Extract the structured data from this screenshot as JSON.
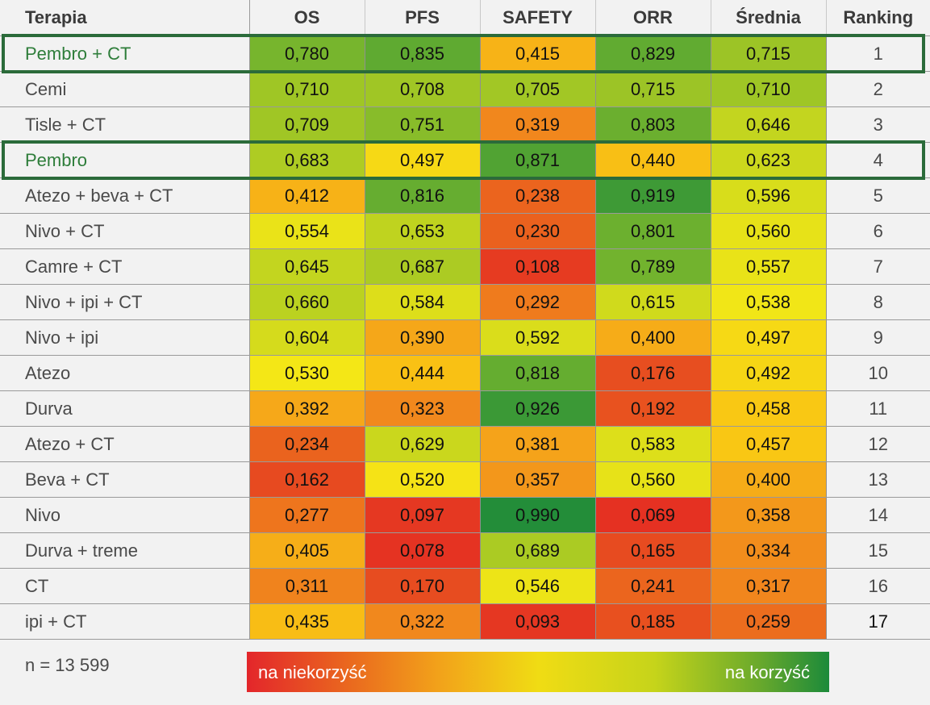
{
  "chart_data": {
    "type": "heatmap",
    "columns": [
      "Terapia",
      "OS",
      "PFS",
      "SAFETY",
      "ORR",
      "Średnia",
      "Ranking"
    ],
    "rows": [
      {
        "therapy": "Pembro + CT",
        "values": [
          "0,780",
          "0,835",
          "0,415",
          "0,829",
          "0,715"
        ],
        "rank": "1",
        "highlight": true
      },
      {
        "therapy": "Cemi",
        "values": [
          "0,710",
          "0,708",
          "0,705",
          "0,715",
          "0,710"
        ],
        "rank": "2",
        "highlight": false
      },
      {
        "therapy": "Tisle + CT",
        "values": [
          "0,709",
          "0,751",
          "0,319",
          "0,803",
          "0,646"
        ],
        "rank": "3",
        "highlight": false
      },
      {
        "therapy": "Pembro",
        "values": [
          "0,683",
          "0,497",
          "0,871",
          "0,440",
          "0,623"
        ],
        "rank": "4",
        "highlight": true
      },
      {
        "therapy": "Atezo + beva + CT",
        "values": [
          "0,412",
          "0,816",
          "0,238",
          "0,919",
          "0,596"
        ],
        "rank": "5",
        "highlight": false
      },
      {
        "therapy": "Nivo + CT",
        "values": [
          "0,554",
          "0,653",
          "0,230",
          "0,801",
          "0,560"
        ],
        "rank": "6",
        "highlight": false
      },
      {
        "therapy": "Camre + CT",
        "values": [
          "0,645",
          "0,687",
          "0,108",
          "0,789",
          "0,557"
        ],
        "rank": "7",
        "highlight": false
      },
      {
        "therapy": "Nivo + ipi + CT",
        "values": [
          "0,660",
          "0,584",
          "0,292",
          "0,615",
          "0,538"
        ],
        "rank": "8",
        "highlight": false
      },
      {
        "therapy": "Nivo + ipi",
        "values": [
          "0,604",
          "0,390",
          "0,592",
          "0,400",
          "0,497"
        ],
        "rank": "9",
        "highlight": false
      },
      {
        "therapy": "Atezo",
        "values": [
          "0,530",
          "0,444",
          "0,818",
          "0,176",
          "0,492"
        ],
        "rank": "10",
        "highlight": false
      },
      {
        "therapy": "Durva",
        "values": [
          "0,392",
          "0,323",
          "0,926",
          "0,192",
          "0,458"
        ],
        "rank": "11",
        "highlight": false
      },
      {
        "therapy": "Atezo + CT",
        "values": [
          "0,234",
          "0,629",
          "0,381",
          "0,583",
          "0,457"
        ],
        "rank": "12",
        "highlight": false
      },
      {
        "therapy": "Beva + CT",
        "values": [
          "0,162",
          "0,520",
          "0,357",
          "0,560",
          "0,400"
        ],
        "rank": "13",
        "highlight": false
      },
      {
        "therapy": "Nivo",
        "values": [
          "0,277",
          "0,097",
          "0,990",
          "0,069",
          "0,358"
        ],
        "rank": "14",
        "highlight": false
      },
      {
        "therapy": "Durva + treme",
        "values": [
          "0,405",
          "0,078",
          "0,689",
          "0,165",
          "0,334"
        ],
        "rank": "15",
        "highlight": false
      },
      {
        "therapy": "CT",
        "values": [
          "0,311",
          "0,170",
          "0,546",
          "0,241",
          "0,317"
        ],
        "rank": "16",
        "highlight": false
      },
      {
        "therapy": "ipi + CT",
        "values": [
          "0,435",
          "0,322",
          "0,093",
          "0,185",
          "0,259"
        ],
        "rank": "17",
        "highlight": false
      }
    ],
    "color_scale": {
      "low_color": "#e3262b",
      "mid_color": "#f0dc14",
      "high_color": "#1c8a3a",
      "low_label": "na niekorzyść",
      "high_label": "na korzyść"
    },
    "highlight_color": "#2b6b3a"
  },
  "footer": {
    "note": "n = 13 599"
  }
}
